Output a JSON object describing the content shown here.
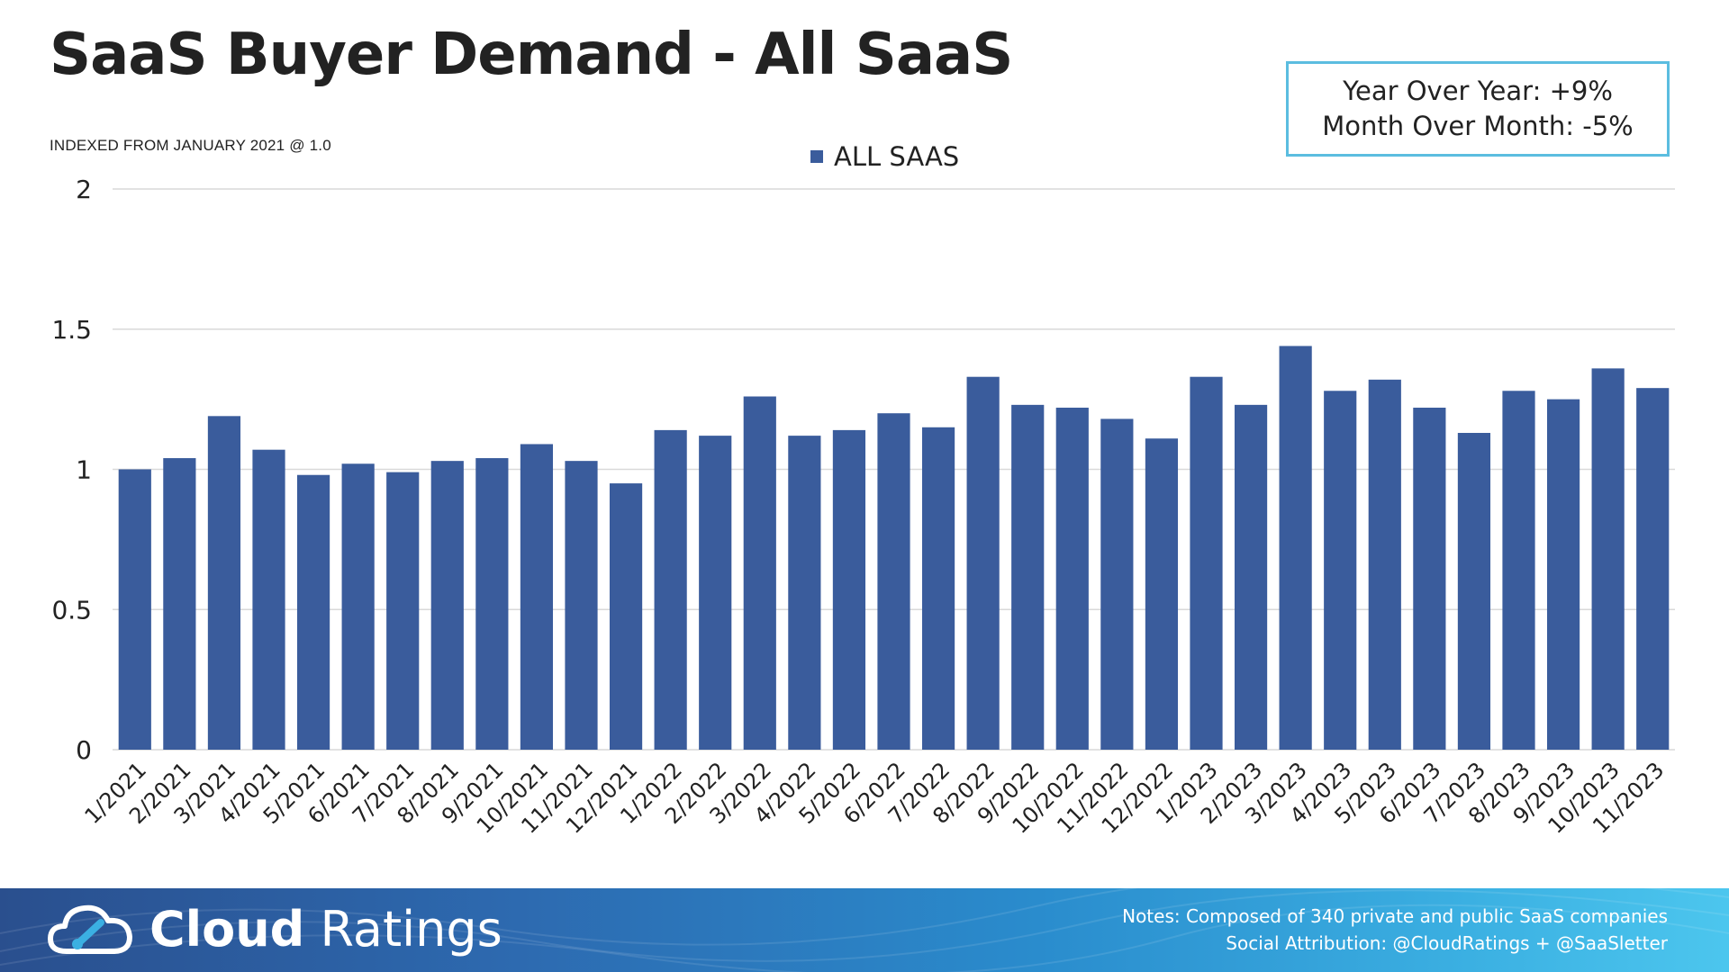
{
  "title": "SaaS Buyer Demand - All SaaS",
  "subtitle": "INDEXED FROM JANUARY 2021 @ 1.0",
  "stats": {
    "yoy": "Year Over Year: +9%",
    "mom": "Month Over Month: -5%"
  },
  "colors": {
    "bar": "#3a5c9c",
    "grid": "#d9d9d9",
    "box_border": "#5bbde0"
  },
  "chart_data": {
    "type": "bar",
    "categories": [
      "1/2021",
      "2/2021",
      "3/2021",
      "4/2021",
      "5/2021",
      "6/2021",
      "7/2021",
      "8/2021",
      "9/2021",
      "10/2021",
      "11/2021",
      "12/2021",
      "1/2022",
      "2/2022",
      "3/2022",
      "4/2022",
      "5/2022",
      "6/2022",
      "7/2022",
      "8/2022",
      "9/2022",
      "10/2022",
      "11/2022",
      "12/2022",
      "1/2023",
      "2/2023",
      "3/2023",
      "4/2023",
      "5/2023",
      "6/2023",
      "7/2023",
      "8/2023",
      "9/2023",
      "10/2023",
      "11/2023"
    ],
    "series": [
      {
        "name": "ALL SAAS",
        "values": [
          1.0,
          1.04,
          1.19,
          1.07,
          0.98,
          1.02,
          0.99,
          1.03,
          1.04,
          1.09,
          1.03,
          0.95,
          1.14,
          1.12,
          1.26,
          1.12,
          1.14,
          1.2,
          1.15,
          1.33,
          1.23,
          1.22,
          1.18,
          1.11,
          1.33,
          1.23,
          1.44,
          1.28,
          1.32,
          1.22,
          1.13,
          1.28,
          1.25,
          1.36,
          1.29
        ]
      }
    ],
    "ylim": [
      0,
      2
    ],
    "yticks": [
      "0",
      "0.5",
      "1",
      "1.5",
      "2"
    ],
    "grid": true,
    "legend": "top-center"
  },
  "footer": {
    "brand_bold": "Cloud",
    "brand_light": "Ratings",
    "logo_icon": "cloud-gauge-icon",
    "notes": "Notes: Composed of 340 private and public SaaS companies",
    "attribution": "Social Attribution: @CloudRatings + @SaaSletter"
  }
}
